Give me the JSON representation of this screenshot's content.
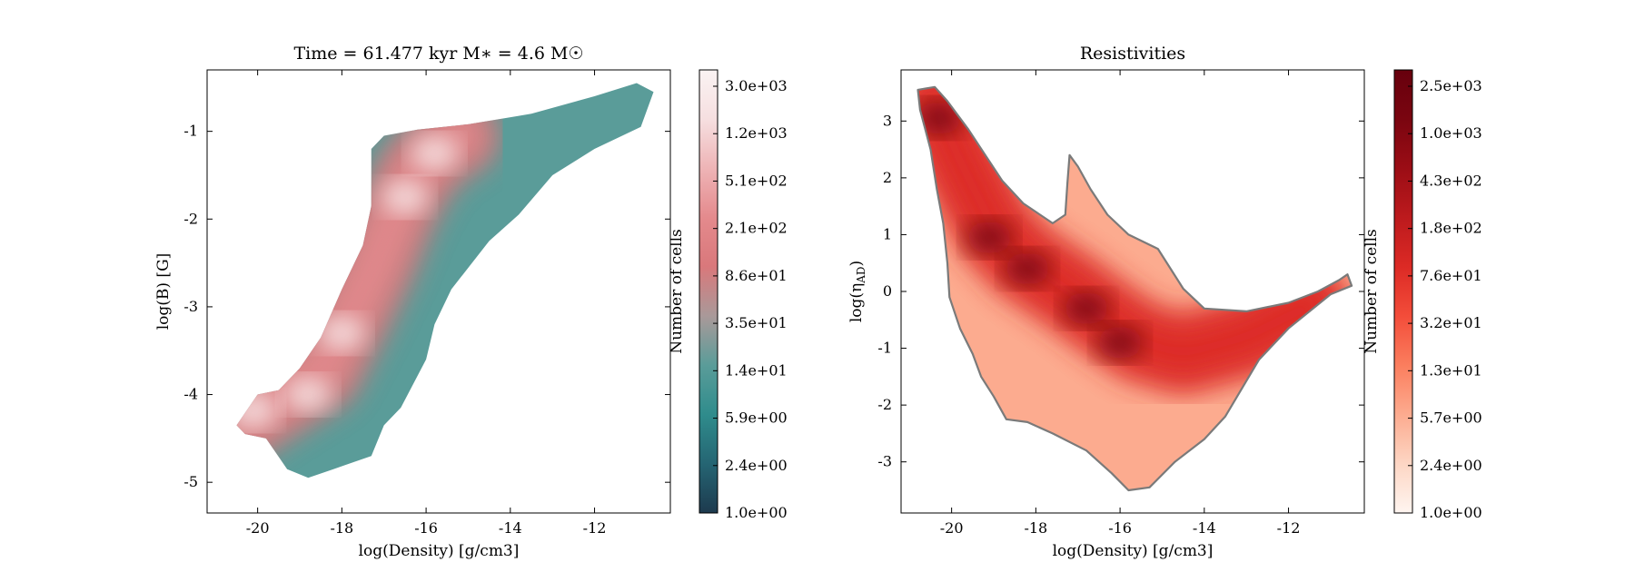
{
  "chart_data": [
    {
      "type": "heatmap",
      "title": "Time = 61.477 kyr    M∗ = 4.6 M☉",
      "xlabel": "log(Density) [g/cm3]",
      "ylabel": "log(B) [G]",
      "xlim": [
        -21.2,
        -10.2
      ],
      "ylim": [
        -5.35,
        -0.3
      ],
      "xticks": [
        -20,
        -18,
        -16,
        -14,
        -12
      ],
      "xtick_labels": [
        "-20",
        "-18",
        "-16",
        "-14",
        "-12"
      ],
      "yticks": [
        -5,
        -4,
        -3,
        -2,
        -1
      ],
      "ytick_labels": [
        "-5",
        "-4",
        "-3",
        "-2",
        "-1"
      ],
      "colorbar": {
        "label": "Number of cells",
        "scale": "log",
        "ticks": [
          "3.0e+03",
          "1.2e+03",
          "5.1e+02",
          "2.1e+02",
          "8.6e+01",
          "3.5e+01",
          "1.4e+01",
          "5.9e+00",
          "2.4e+00",
          "1.0e+00"
        ],
        "colors": [
          "#1d3a4e",
          "#256573",
          "#2f8c8c",
          "#5a9c99",
          "#a99999",
          "#d9787b",
          "#e48a8d",
          "#eeb4b6",
          "#f6dfe0",
          "#faf3f3"
        ]
      },
      "region_outline": [
        [
          -20.5,
          -4.35
        ],
        [
          -20.0,
          -4.0
        ],
        [
          -19.5,
          -3.95
        ],
        [
          -19.0,
          -3.7
        ],
        [
          -18.5,
          -3.35
        ],
        [
          -18.0,
          -2.8
        ],
        [
          -17.5,
          -2.3
        ],
        [
          -17.3,
          -1.85
        ],
        [
          -17.3,
          -1.2
        ],
        [
          -17.0,
          -1.05
        ],
        [
          -16.2,
          -0.98
        ],
        [
          -15.0,
          -0.92
        ],
        [
          -13.5,
          -0.8
        ],
        [
          -12.0,
          -0.6
        ],
        [
          -11.0,
          -0.45
        ],
        [
          -10.6,
          -0.55
        ],
        [
          -10.9,
          -0.95
        ],
        [
          -12.0,
          -1.2
        ],
        [
          -13.0,
          -1.5
        ],
        [
          -13.8,
          -1.95
        ],
        [
          -14.5,
          -2.25
        ],
        [
          -15.4,
          -2.8
        ],
        [
          -15.8,
          -3.2
        ],
        [
          -16.0,
          -3.6
        ],
        [
          -16.6,
          -4.15
        ],
        [
          -17.0,
          -4.35
        ],
        [
          -17.3,
          -4.7
        ],
        [
          -18.2,
          -4.85
        ],
        [
          -18.8,
          -4.95
        ],
        [
          -19.3,
          -4.85
        ],
        [
          -19.8,
          -4.5
        ],
        [
          -20.3,
          -4.45
        ]
      ],
      "ridge": [
        [
          -20.3,
          -4.3
        ],
        [
          -19.5,
          -4.05
        ],
        [
          -18.5,
          -3.75
        ],
        [
          -17.8,
          -3.1
        ],
        [
          -17.2,
          -2.5
        ],
        [
          -16.7,
          -1.9
        ],
        [
          -16.2,
          -1.45
        ],
        [
          -15.7,
          -1.2
        ],
        [
          -15.2,
          -1.05
        ]
      ],
      "hotspots": [
        [
          -20.1,
          -4.18
        ],
        [
          -18.8,
          -4.0
        ],
        [
          -18.0,
          -3.3
        ],
        [
          -16.5,
          -1.75
        ],
        [
          -15.8,
          -1.25
        ]
      ]
    },
    {
      "type": "heatmap",
      "title": "Resistivities",
      "xlabel": "log(Density) [g/cm3]",
      "ylabel": "log(ηAD)",
      "ylabel_main": "log(η",
      "ylabel_sub": "AD",
      "ylabel_close": ")",
      "xlim": [
        -21.2,
        -10.2
      ],
      "ylim": [
        -3.9,
        3.9
      ],
      "xticks": [
        -20,
        -18,
        -16,
        -14,
        -12
      ],
      "xtick_labels": [
        "-20",
        "-18",
        "-16",
        "-14",
        "-12"
      ],
      "yticks": [
        -3,
        -2,
        -1,
        0,
        1,
        2,
        3
      ],
      "ytick_labels": [
        "-3",
        "-2",
        "-1",
        "0",
        "1",
        "2",
        "3"
      ],
      "colorbar": {
        "label": "Number of cells",
        "scale": "log",
        "ticks": [
          "2.5e+03",
          "1.0e+03",
          "4.3e+02",
          "1.8e+02",
          "7.6e+01",
          "3.2e+01",
          "1.3e+01",
          "5.7e+00",
          "2.4e+00",
          "1.0e+00"
        ],
        "colors": [
          "#fff5f0",
          "#fdd6c4",
          "#fcab8f",
          "#fb7e5e",
          "#f34d3a",
          "#dc2a25",
          "#bc1a1d",
          "#9b0d15",
          "#7a0510",
          "#67000d"
        ]
      },
      "outline_color": "#7a7a7a",
      "region_outline": [
        [
          -20.8,
          3.55
        ],
        [
          -20.4,
          3.6
        ],
        [
          -20.1,
          3.35
        ],
        [
          -19.6,
          2.85
        ],
        [
          -19.2,
          2.4
        ],
        [
          -18.8,
          1.95
        ],
        [
          -18.3,
          1.55
        ],
        [
          -17.9,
          1.35
        ],
        [
          -17.6,
          1.2
        ],
        [
          -17.3,
          1.35
        ],
        [
          -17.25,
          1.9
        ],
        [
          -17.2,
          2.4
        ],
        [
          -17.0,
          2.2
        ],
        [
          -16.7,
          1.8
        ],
        [
          -16.3,
          1.35
        ],
        [
          -15.8,
          1.0
        ],
        [
          -15.1,
          0.75
        ],
        [
          -14.8,
          0.4
        ],
        [
          -14.5,
          0.05
        ],
        [
          -14.0,
          -0.3
        ],
        [
          -13.0,
          -0.35
        ],
        [
          -12.0,
          -0.2
        ],
        [
          -11.3,
          0.0
        ],
        [
          -10.8,
          0.2
        ],
        [
          -10.6,
          0.3
        ],
        [
          -10.5,
          0.1
        ],
        [
          -11.0,
          -0.05
        ],
        [
          -12.0,
          -0.65
        ],
        [
          -12.7,
          -1.2
        ],
        [
          -13.5,
          -2.2
        ],
        [
          -14.0,
          -2.6
        ],
        [
          -14.7,
          -3.0
        ],
        [
          -15.3,
          -3.45
        ],
        [
          -15.8,
          -3.5
        ],
        [
          -16.2,
          -3.2
        ],
        [
          -16.8,
          -2.8
        ],
        [
          -17.6,
          -2.5
        ],
        [
          -18.2,
          -2.3
        ],
        [
          -18.7,
          -2.25
        ],
        [
          -19.0,
          -1.85
        ],
        [
          -19.3,
          -1.5
        ],
        [
          -19.5,
          -1.1
        ],
        [
          -19.8,
          -0.65
        ],
        [
          -20.05,
          -0.1
        ],
        [
          -20.1,
          0.5
        ],
        [
          -20.2,
          1.2
        ],
        [
          -20.35,
          1.8
        ],
        [
          -20.5,
          2.5
        ],
        [
          -20.75,
          3.2
        ]
      ],
      "ridge": [
        [
          -20.4,
          3.3
        ],
        [
          -19.8,
          2.3
        ],
        [
          -19.0,
          1.1
        ],
        [
          -18.3,
          0.55
        ],
        [
          -17.2,
          0.0
        ],
        [
          -16.3,
          -0.5
        ],
        [
          -15.5,
          -0.9
        ],
        [
          -14.5,
          -1.1
        ],
        [
          -13.0,
          -0.8
        ],
        [
          -11.5,
          -0.25
        ]
      ],
      "hotspots": [
        [
          -20.3,
          3.05
        ],
        [
          -19.1,
          0.95
        ],
        [
          -18.2,
          0.4
        ],
        [
          -16.8,
          -0.3
        ],
        [
          -16.0,
          -0.9
        ]
      ]
    }
  ]
}
